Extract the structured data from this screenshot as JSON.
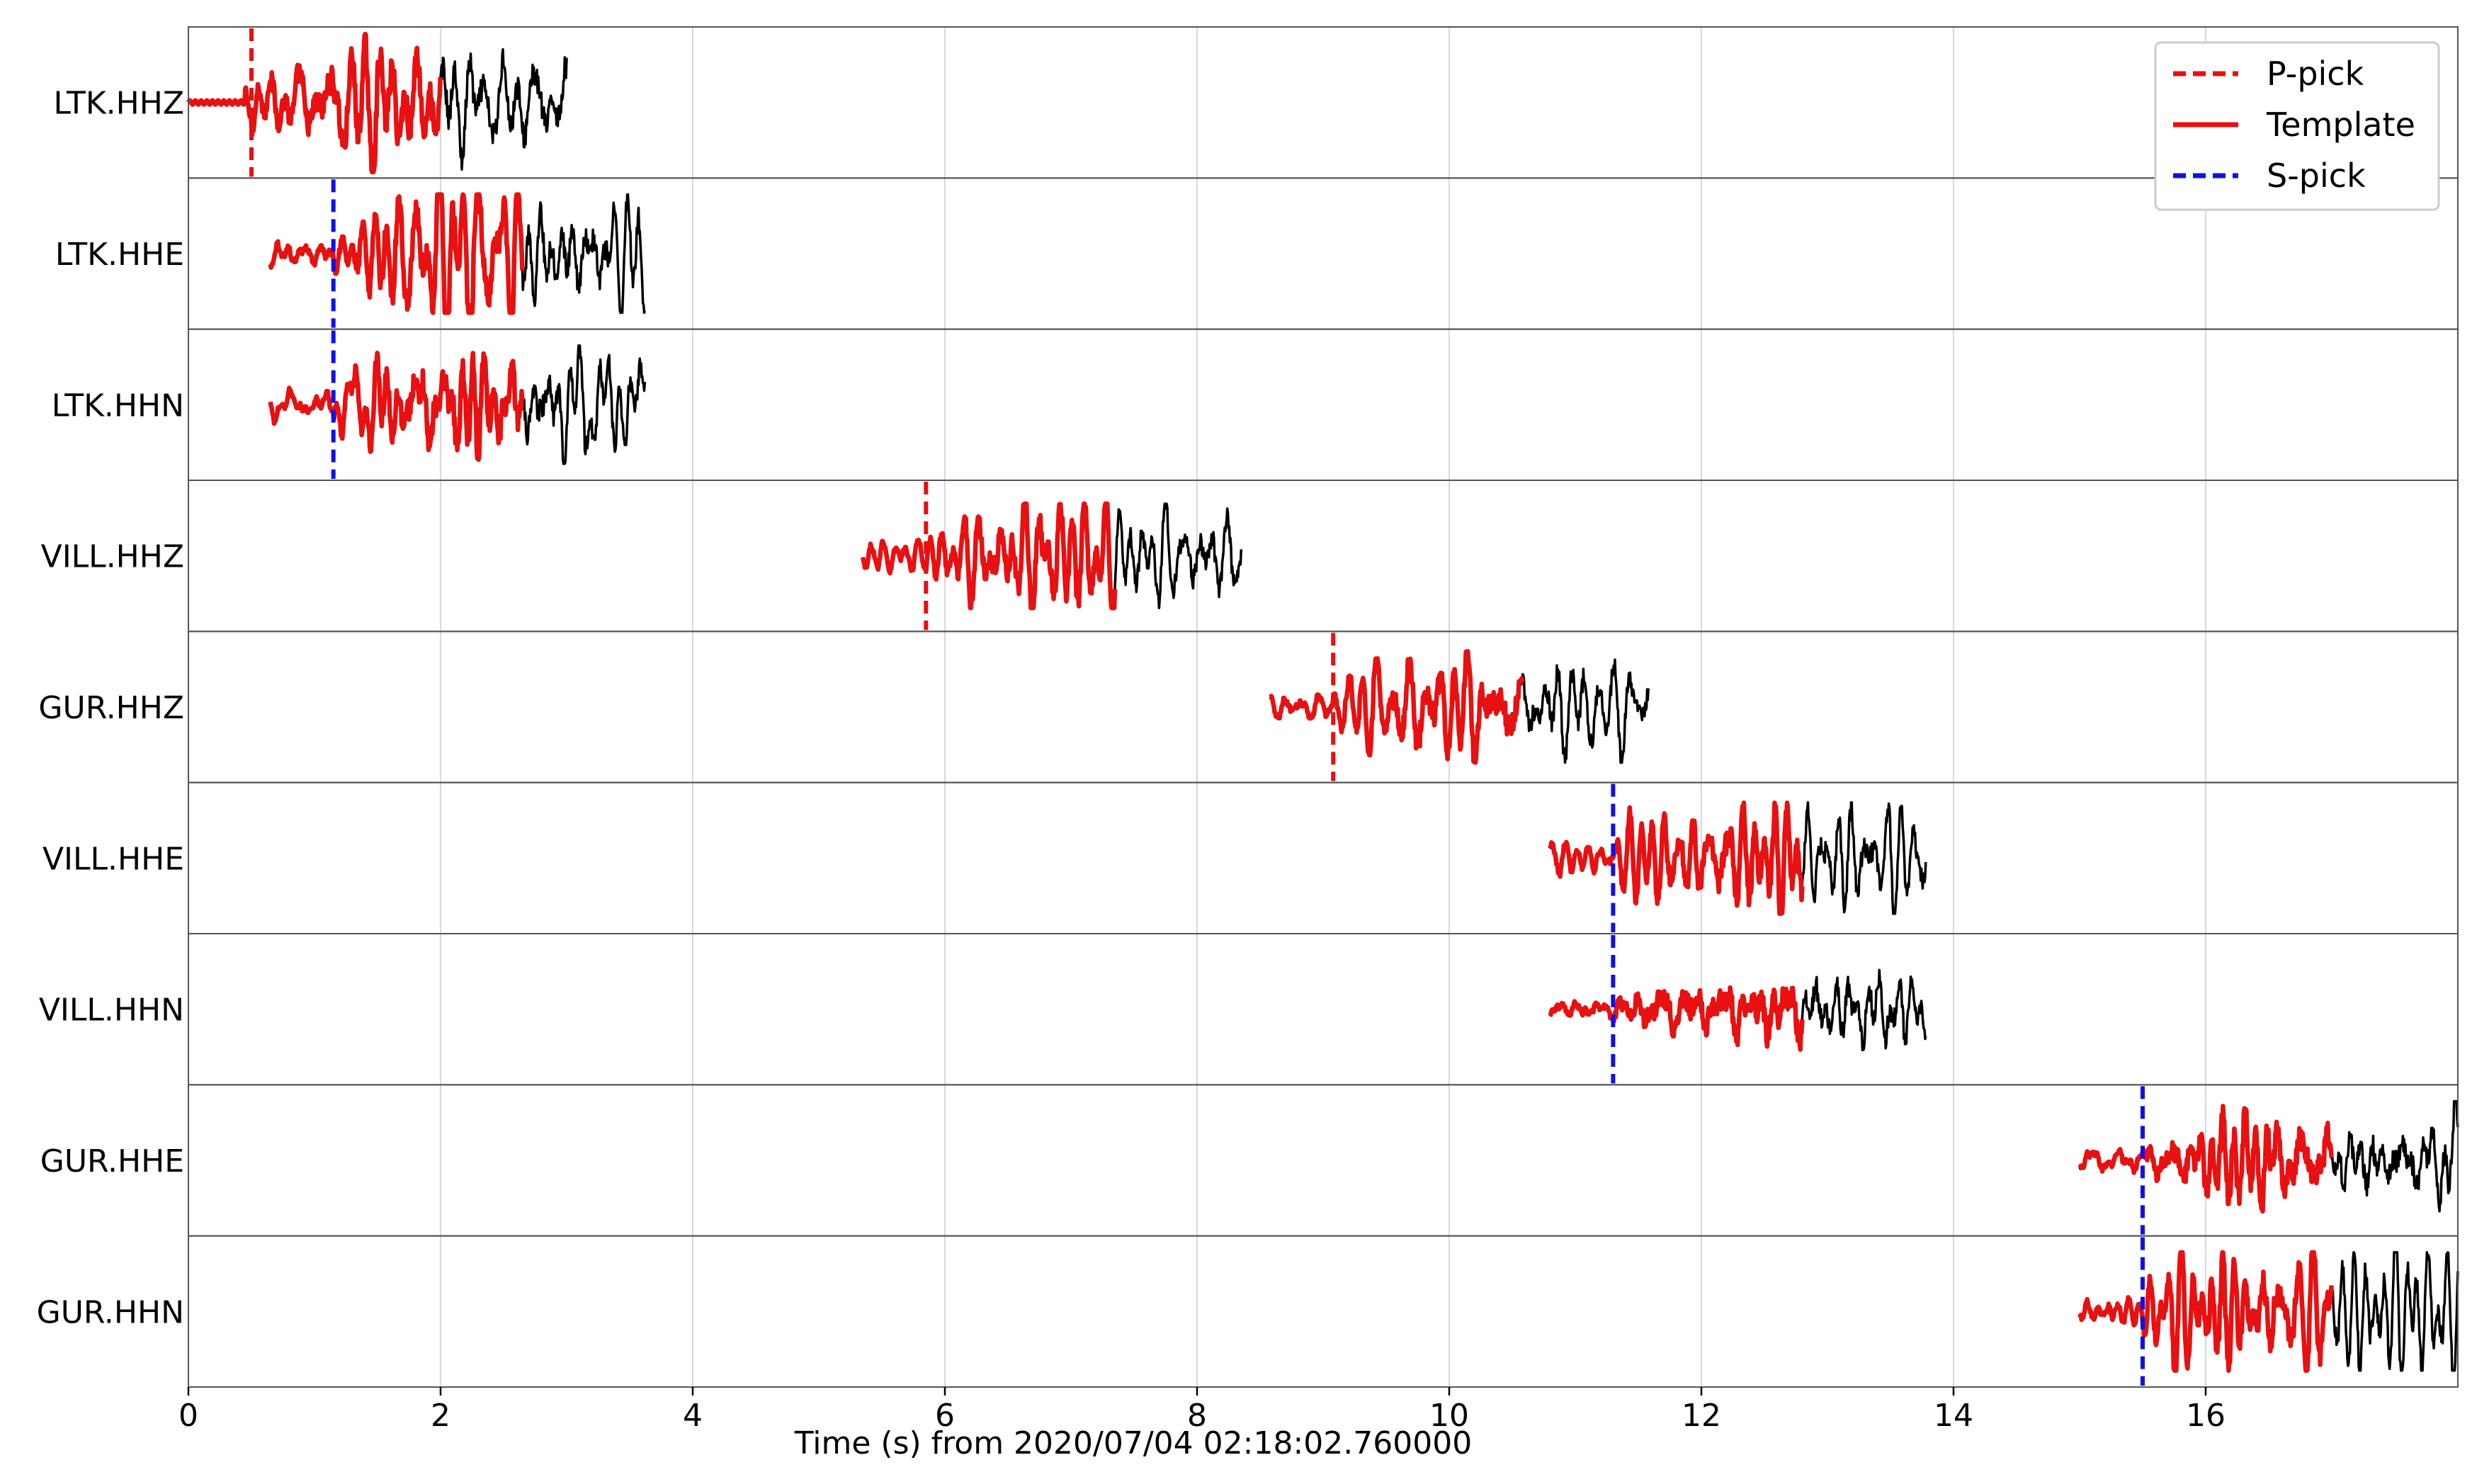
{
  "chart_data": {
    "type": "line",
    "title": "",
    "xlabel": "Time (s) from 2020/07/04 02:18:02.760000",
    "ylabel": "",
    "xlim": [
      0,
      18
    ],
    "xticks": [
      0,
      2,
      4,
      6,
      8,
      10,
      12,
      14,
      16
    ],
    "grid": "vertical at x ticks",
    "legend": {
      "placement": "top-right",
      "entries": [
        {
          "label": "P-pick",
          "color": "#e81010",
          "style": "dashed"
        },
        {
          "label": "Template",
          "color": "#e81010",
          "style": "solid"
        },
        {
          "label": "S-pick",
          "color": "#1010e8",
          "style": "dashed"
        }
      ]
    },
    "colors": {
      "data": "#000000",
      "template": "#e81010",
      "s_pick": "#1010e8",
      "p_pick": "#e81010",
      "grid": "#d8d8d8"
    },
    "traces": [
      {
        "name": "LTK.HHZ",
        "data_start": 0.0,
        "data_end": 3.0,
        "template_start": 0.0,
        "template_end": 2.0,
        "pick_type": "P",
        "pick_time": 0.5,
        "flat_until": 0.45,
        "amplitude": 1.0
      },
      {
        "name": "LTK.HHE",
        "data_start": 0.65,
        "data_end": 3.62,
        "template_start": 0.65,
        "template_end": 2.65,
        "pick_type": "S",
        "pick_time": 1.15,
        "amplitude": 0.85
      },
      {
        "name": "LTK.HHN",
        "data_start": 0.65,
        "data_end": 3.62,
        "template_start": 0.65,
        "template_end": 2.65,
        "pick_type": "S",
        "pick_time": 1.15,
        "amplitude": 0.85
      },
      {
        "name": "VILL.HHZ",
        "data_start": 5.35,
        "data_end": 8.35,
        "template_start": 5.35,
        "template_end": 7.35,
        "pick_type": "P",
        "pick_time": 5.85,
        "amplitude": 0.75
      },
      {
        "name": "GUR.HHZ",
        "data_start": 8.58,
        "data_end": 11.58,
        "template_start": 8.58,
        "template_end": 10.58,
        "pick_type": "P",
        "pick_time": 9.08,
        "amplitude": 0.8
      },
      {
        "name": "VILL.HHE",
        "data_start": 10.8,
        "data_end": 13.78,
        "template_start": 10.8,
        "template_end": 12.8,
        "pick_type": "S",
        "pick_time": 11.3,
        "amplitude": 0.8
      },
      {
        "name": "VILL.HHN",
        "data_start": 10.8,
        "data_end": 13.78,
        "template_start": 10.8,
        "template_end": 12.8,
        "pick_type": "S",
        "pick_time": 11.3,
        "amplitude": 0.8
      },
      {
        "name": "GUR.HHE",
        "data_start": 15.0,
        "data_end": 18.0,
        "template_start": 15.0,
        "template_end": 17.0,
        "pick_type": "S",
        "pick_time": 15.5,
        "amplitude": 0.85
      },
      {
        "name": "GUR.HHN",
        "data_start": 15.0,
        "data_end": 18.0,
        "template_start": 15.0,
        "template_end": 17.0,
        "pick_type": "S",
        "pick_time": 15.5,
        "amplitude": 0.85
      }
    ]
  }
}
